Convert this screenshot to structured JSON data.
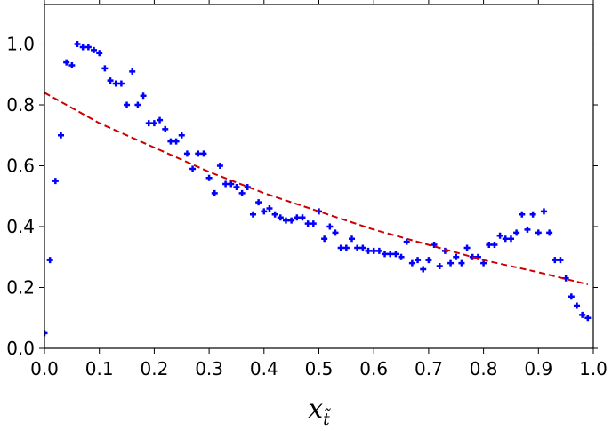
{
  "chart_data": {
    "type": "scatter",
    "title": "",
    "xlabel": "x",
    "xlabel_sub": "t̃",
    "ylabel": "",
    "xlim": [
      0.0,
      1.0
    ],
    "ylim": [
      0.0,
      1.13
    ],
    "grid": false,
    "legend": "none",
    "x_ticks": [
      "0.0",
      "0.1",
      "0.2",
      "0.3",
      "0.4",
      "0.5",
      "0.6",
      "0.7",
      "0.8",
      "0.9",
      "1.0"
    ],
    "y_ticks": [
      "0.0",
      "0.2",
      "0.4",
      "0.6",
      "0.8",
      "1.0"
    ],
    "series": [
      {
        "kind": "scatter",
        "color": "#0000ff",
        "marker": "plus",
        "points": [
          [
            0.0,
            0.05
          ],
          [
            0.01,
            0.29
          ],
          [
            0.02,
            0.55
          ],
          [
            0.03,
            0.7
          ],
          [
            0.04,
            0.94
          ],
          [
            0.05,
            0.93
          ],
          [
            0.06,
            1.0
          ],
          [
            0.07,
            0.99
          ],
          [
            0.08,
            0.99
          ],
          [
            0.09,
            0.98
          ],
          [
            0.1,
            0.97
          ],
          [
            0.11,
            0.92
          ],
          [
            0.12,
            0.88
          ],
          [
            0.13,
            0.87
          ],
          [
            0.14,
            0.87
          ],
          [
            0.15,
            0.8
          ],
          [
            0.16,
            0.91
          ],
          [
            0.17,
            0.8
          ],
          [
            0.18,
            0.83
          ],
          [
            0.19,
            0.74
          ],
          [
            0.2,
            0.74
          ],
          [
            0.21,
            0.75
          ],
          [
            0.22,
            0.72
          ],
          [
            0.23,
            0.68
          ],
          [
            0.24,
            0.68
          ],
          [
            0.25,
            0.7
          ],
          [
            0.26,
            0.64
          ],
          [
            0.27,
            0.59
          ],
          [
            0.28,
            0.64
          ],
          [
            0.29,
            0.64
          ],
          [
            0.3,
            0.56
          ],
          [
            0.31,
            0.51
          ],
          [
            0.32,
            0.6
          ],
          [
            0.33,
            0.54
          ],
          [
            0.34,
            0.54
          ],
          [
            0.35,
            0.53
          ],
          [
            0.36,
            0.51
          ],
          [
            0.37,
            0.53
          ],
          [
            0.38,
            0.44
          ],
          [
            0.39,
            0.48
          ],
          [
            0.4,
            0.45
          ],
          [
            0.41,
            0.46
          ],
          [
            0.42,
            0.44
          ],
          [
            0.43,
            0.43
          ],
          [
            0.44,
            0.42
          ],
          [
            0.45,
            0.42
          ],
          [
            0.46,
            0.43
          ],
          [
            0.47,
            0.43
          ],
          [
            0.48,
            0.41
          ],
          [
            0.49,
            0.41
          ],
          [
            0.5,
            0.45
          ],
          [
            0.51,
            0.36
          ],
          [
            0.52,
            0.4
          ],
          [
            0.53,
            0.38
          ],
          [
            0.54,
            0.33
          ],
          [
            0.55,
            0.33
          ],
          [
            0.56,
            0.36
          ],
          [
            0.57,
            0.33
          ],
          [
            0.58,
            0.33
          ],
          [
            0.59,
            0.32
          ],
          [
            0.6,
            0.32
          ],
          [
            0.61,
            0.32
          ],
          [
            0.62,
            0.31
          ],
          [
            0.63,
            0.31
          ],
          [
            0.64,
            0.31
          ],
          [
            0.65,
            0.3
          ],
          [
            0.66,
            0.35
          ],
          [
            0.67,
            0.28
          ],
          [
            0.68,
            0.29
          ],
          [
            0.69,
            0.26
          ],
          [
            0.7,
            0.29
          ],
          [
            0.71,
            0.34
          ],
          [
            0.72,
            0.27
          ],
          [
            0.73,
            0.32
          ],
          [
            0.74,
            0.28
          ],
          [
            0.75,
            0.3
          ],
          [
            0.76,
            0.28
          ],
          [
            0.77,
            0.33
          ],
          [
            0.78,
            0.3
          ],
          [
            0.79,
            0.3
          ],
          [
            0.8,
            0.28
          ],
          [
            0.81,
            0.34
          ],
          [
            0.82,
            0.34
          ],
          [
            0.83,
            0.37
          ],
          [
            0.84,
            0.36
          ],
          [
            0.85,
            0.36
          ],
          [
            0.86,
            0.38
          ],
          [
            0.87,
            0.44
          ],
          [
            0.88,
            0.39
          ],
          [
            0.89,
            0.44
          ],
          [
            0.9,
            0.38
          ],
          [
            0.91,
            0.45
          ],
          [
            0.92,
            0.38
          ],
          [
            0.93,
            0.29
          ],
          [
            0.94,
            0.29
          ],
          [
            0.95,
            0.23
          ],
          [
            0.96,
            0.17
          ],
          [
            0.97,
            0.14
          ],
          [
            0.98,
            0.11
          ],
          [
            0.99,
            0.1
          ]
        ]
      },
      {
        "kind": "line",
        "color": "#cc0000",
        "style": "dashed",
        "points": [
          [
            0.0,
            0.84
          ],
          [
            0.1,
            0.74
          ],
          [
            0.2,
            0.66
          ],
          [
            0.3,
            0.58
          ],
          [
            0.4,
            0.51
          ],
          [
            0.5,
            0.45
          ],
          [
            0.6,
            0.39
          ],
          [
            0.7,
            0.34
          ],
          [
            0.8,
            0.29
          ],
          [
            0.9,
            0.25
          ],
          [
            0.99,
            0.21
          ]
        ]
      }
    ]
  }
}
